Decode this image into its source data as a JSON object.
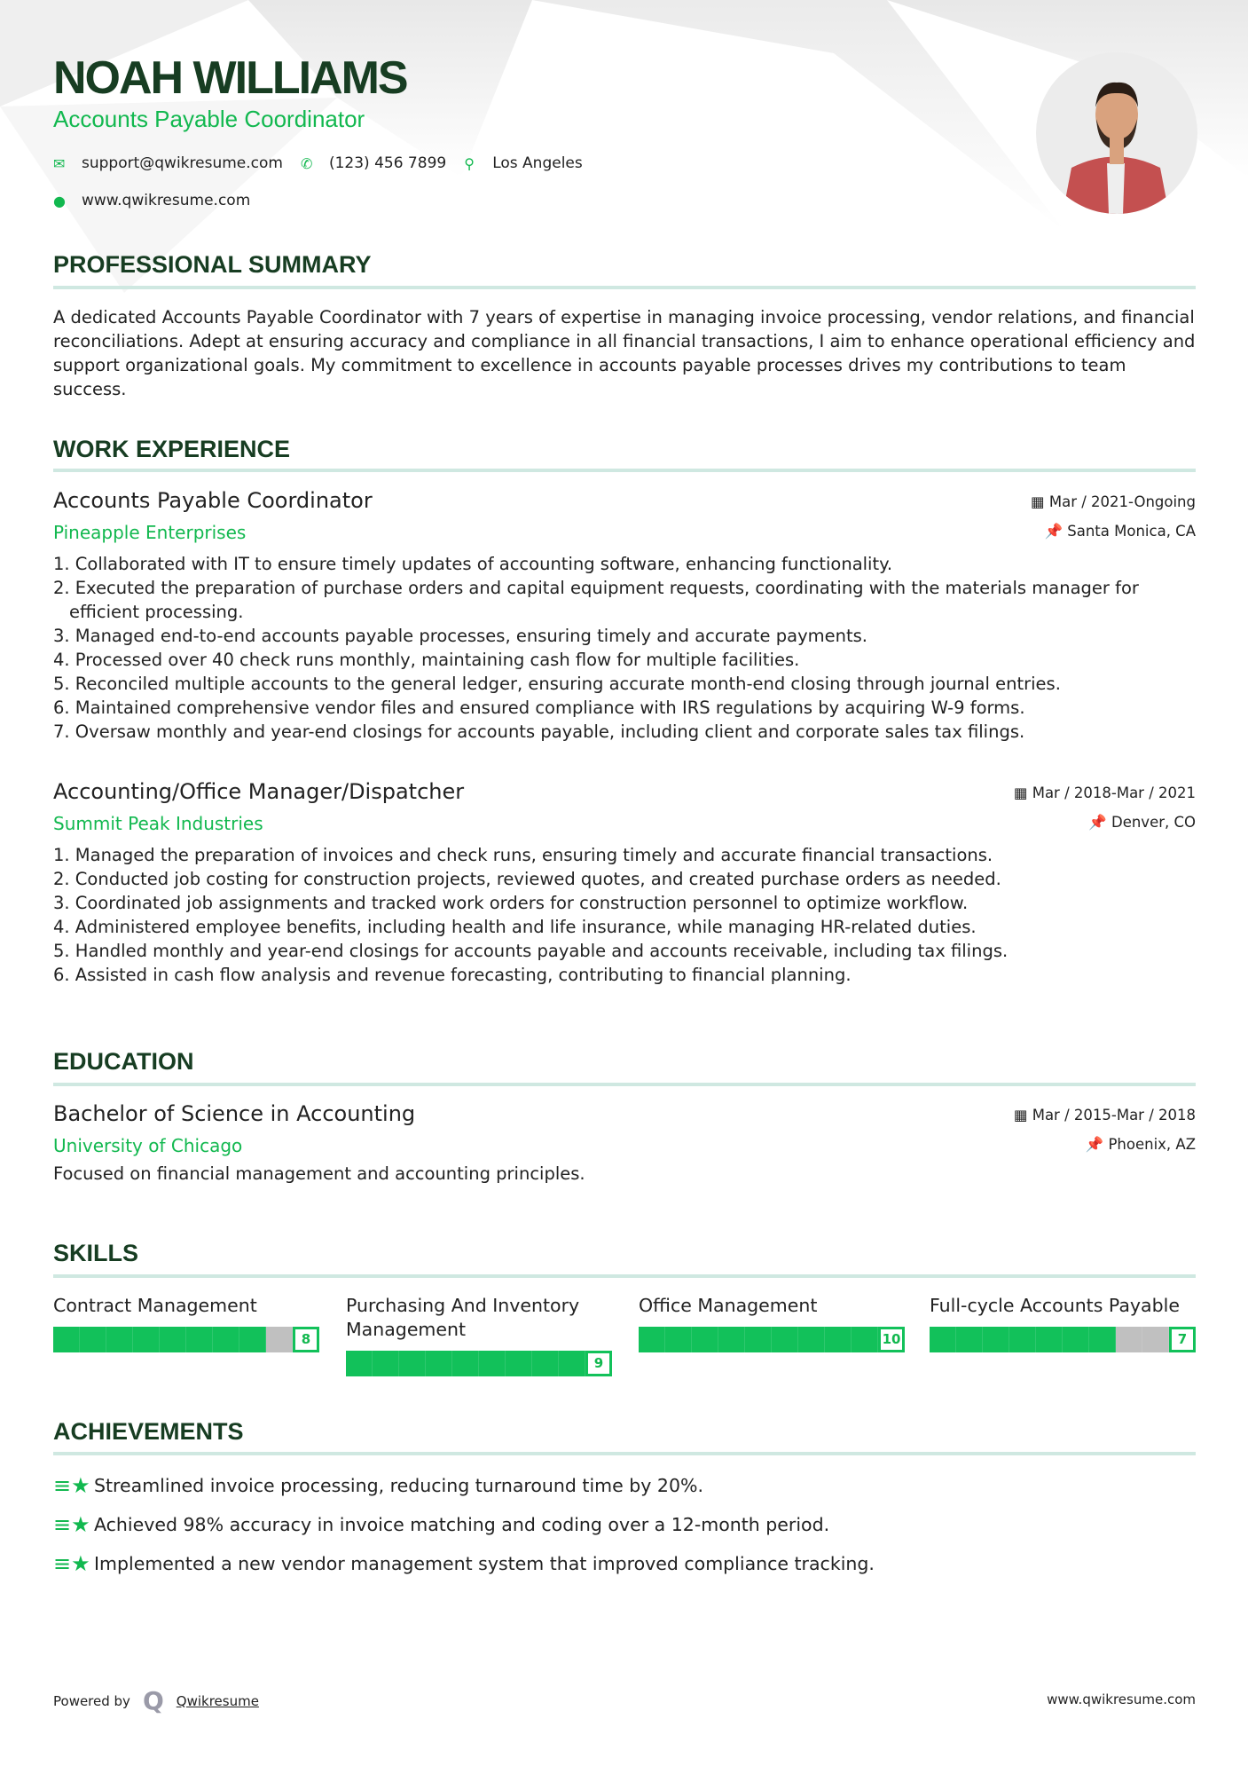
{
  "header": {
    "name": "NOAH WILLIAMS",
    "title": "Accounts Payable Coordinator",
    "email": "support@qwikresume.com",
    "phone": "(123) 456 7899",
    "location": "Los Angeles",
    "website": "www.qwikresume.com"
  },
  "colors": {
    "primary": "#12b84f",
    "heading": "#173d22",
    "rule": "#cfe8e1",
    "bar_fill": "#12c15a",
    "bar_empty": "#c0c0c0"
  },
  "summary": {
    "heading": "PROFESSIONAL SUMMARY",
    "text": "A dedicated Accounts Payable Coordinator with 7 years of expertise in managing invoice processing, vendor relations, and financial reconciliations. Adept at ensuring accuracy and compliance in all financial transactions, I aim to enhance operational efficiency and support organizational goals. My commitment to excellence in accounts payable processes drives my contributions to team success."
  },
  "experience": {
    "heading": "WORK EXPERIENCE",
    "jobs": [
      {
        "title": "Accounts Payable Coordinator",
        "company": "Pineapple Enterprises",
        "dates": "Mar / 2021-Ongoing",
        "location": "Santa Monica, CA",
        "bullets": [
          "1. Collaborated with IT to ensure timely updates of accounting software, enhancing functionality.",
          "2. Executed the preparation of purchase orders and capital equipment requests, coordinating with the materials manager for efficient processing.",
          "3. Managed end-to-end accounts payable processes, ensuring timely and accurate payments.",
          "4. Processed over 40 check runs monthly, maintaining cash flow for multiple facilities.",
          "5. Reconciled multiple accounts to the general ledger, ensuring accurate month-end closing through journal entries.",
          "6. Maintained comprehensive vendor files and ensured compliance with IRS regulations by acquiring W-9 forms.",
          "7. Oversaw monthly and year-end closings for accounts payable, including client and corporate sales tax filings."
        ]
      },
      {
        "title": "Accounting/Office Manager/Dispatcher",
        "company": "Summit Peak Industries",
        "dates": "Mar / 2018-Mar / 2021",
        "location": "Denver, CO",
        "bullets": [
          "1. Managed the preparation of invoices and check runs, ensuring timely and accurate financial transactions.",
          "2. Conducted job costing for construction projects, reviewed quotes, and created purchase orders as needed.",
          "3. Coordinated job assignments and tracked work orders for construction personnel to optimize workflow.",
          "4. Administered employee benefits, including health and life insurance, while managing HR-related duties.",
          "5. Handled monthly and year-end closings for accounts payable and accounts receivable, including tax filings.",
          "6. Assisted in cash flow analysis and revenue forecasting, contributing to financial planning."
        ]
      }
    ]
  },
  "education": {
    "heading": "EDUCATION",
    "degree": "Bachelor of Science in Accounting",
    "school": "University of Chicago",
    "dates": "Mar / 2015-Mar / 2018",
    "location": "Phoenix, AZ",
    "description": "Focused on financial management and accounting principles."
  },
  "skills": {
    "heading": "SKILLS",
    "items": [
      {
        "name": "Contract Management",
        "level": 8,
        "max": 10
      },
      {
        "name": "Purchasing And Inventory Management",
        "level": 9,
        "max": 10
      },
      {
        "name": "Office Management",
        "level": 10,
        "max": 10
      },
      {
        "name": "Full-cycle Accounts Payable",
        "level": 7,
        "max": 10
      }
    ]
  },
  "achievements": {
    "heading": "ACHIEVEMENTS",
    "items": [
      "Streamlined invoice processing, reducing turnaround time by 20%.",
      "Achieved 98% accuracy in invoice matching and coding over a 12-month period.",
      "Implemented a new vendor management system that improved compliance tracking."
    ]
  },
  "footer": {
    "powered_by": "Powered by",
    "brand": "Qwikresume",
    "website": "www.qwikresume.com"
  },
  "icons": {
    "email": "envelope-icon",
    "phone": "phone-icon",
    "location": "map-pin-icon",
    "website": "globe-icon",
    "date": "calendar-icon",
    "place": "pushpin-icon",
    "achievement": "star-icon"
  }
}
